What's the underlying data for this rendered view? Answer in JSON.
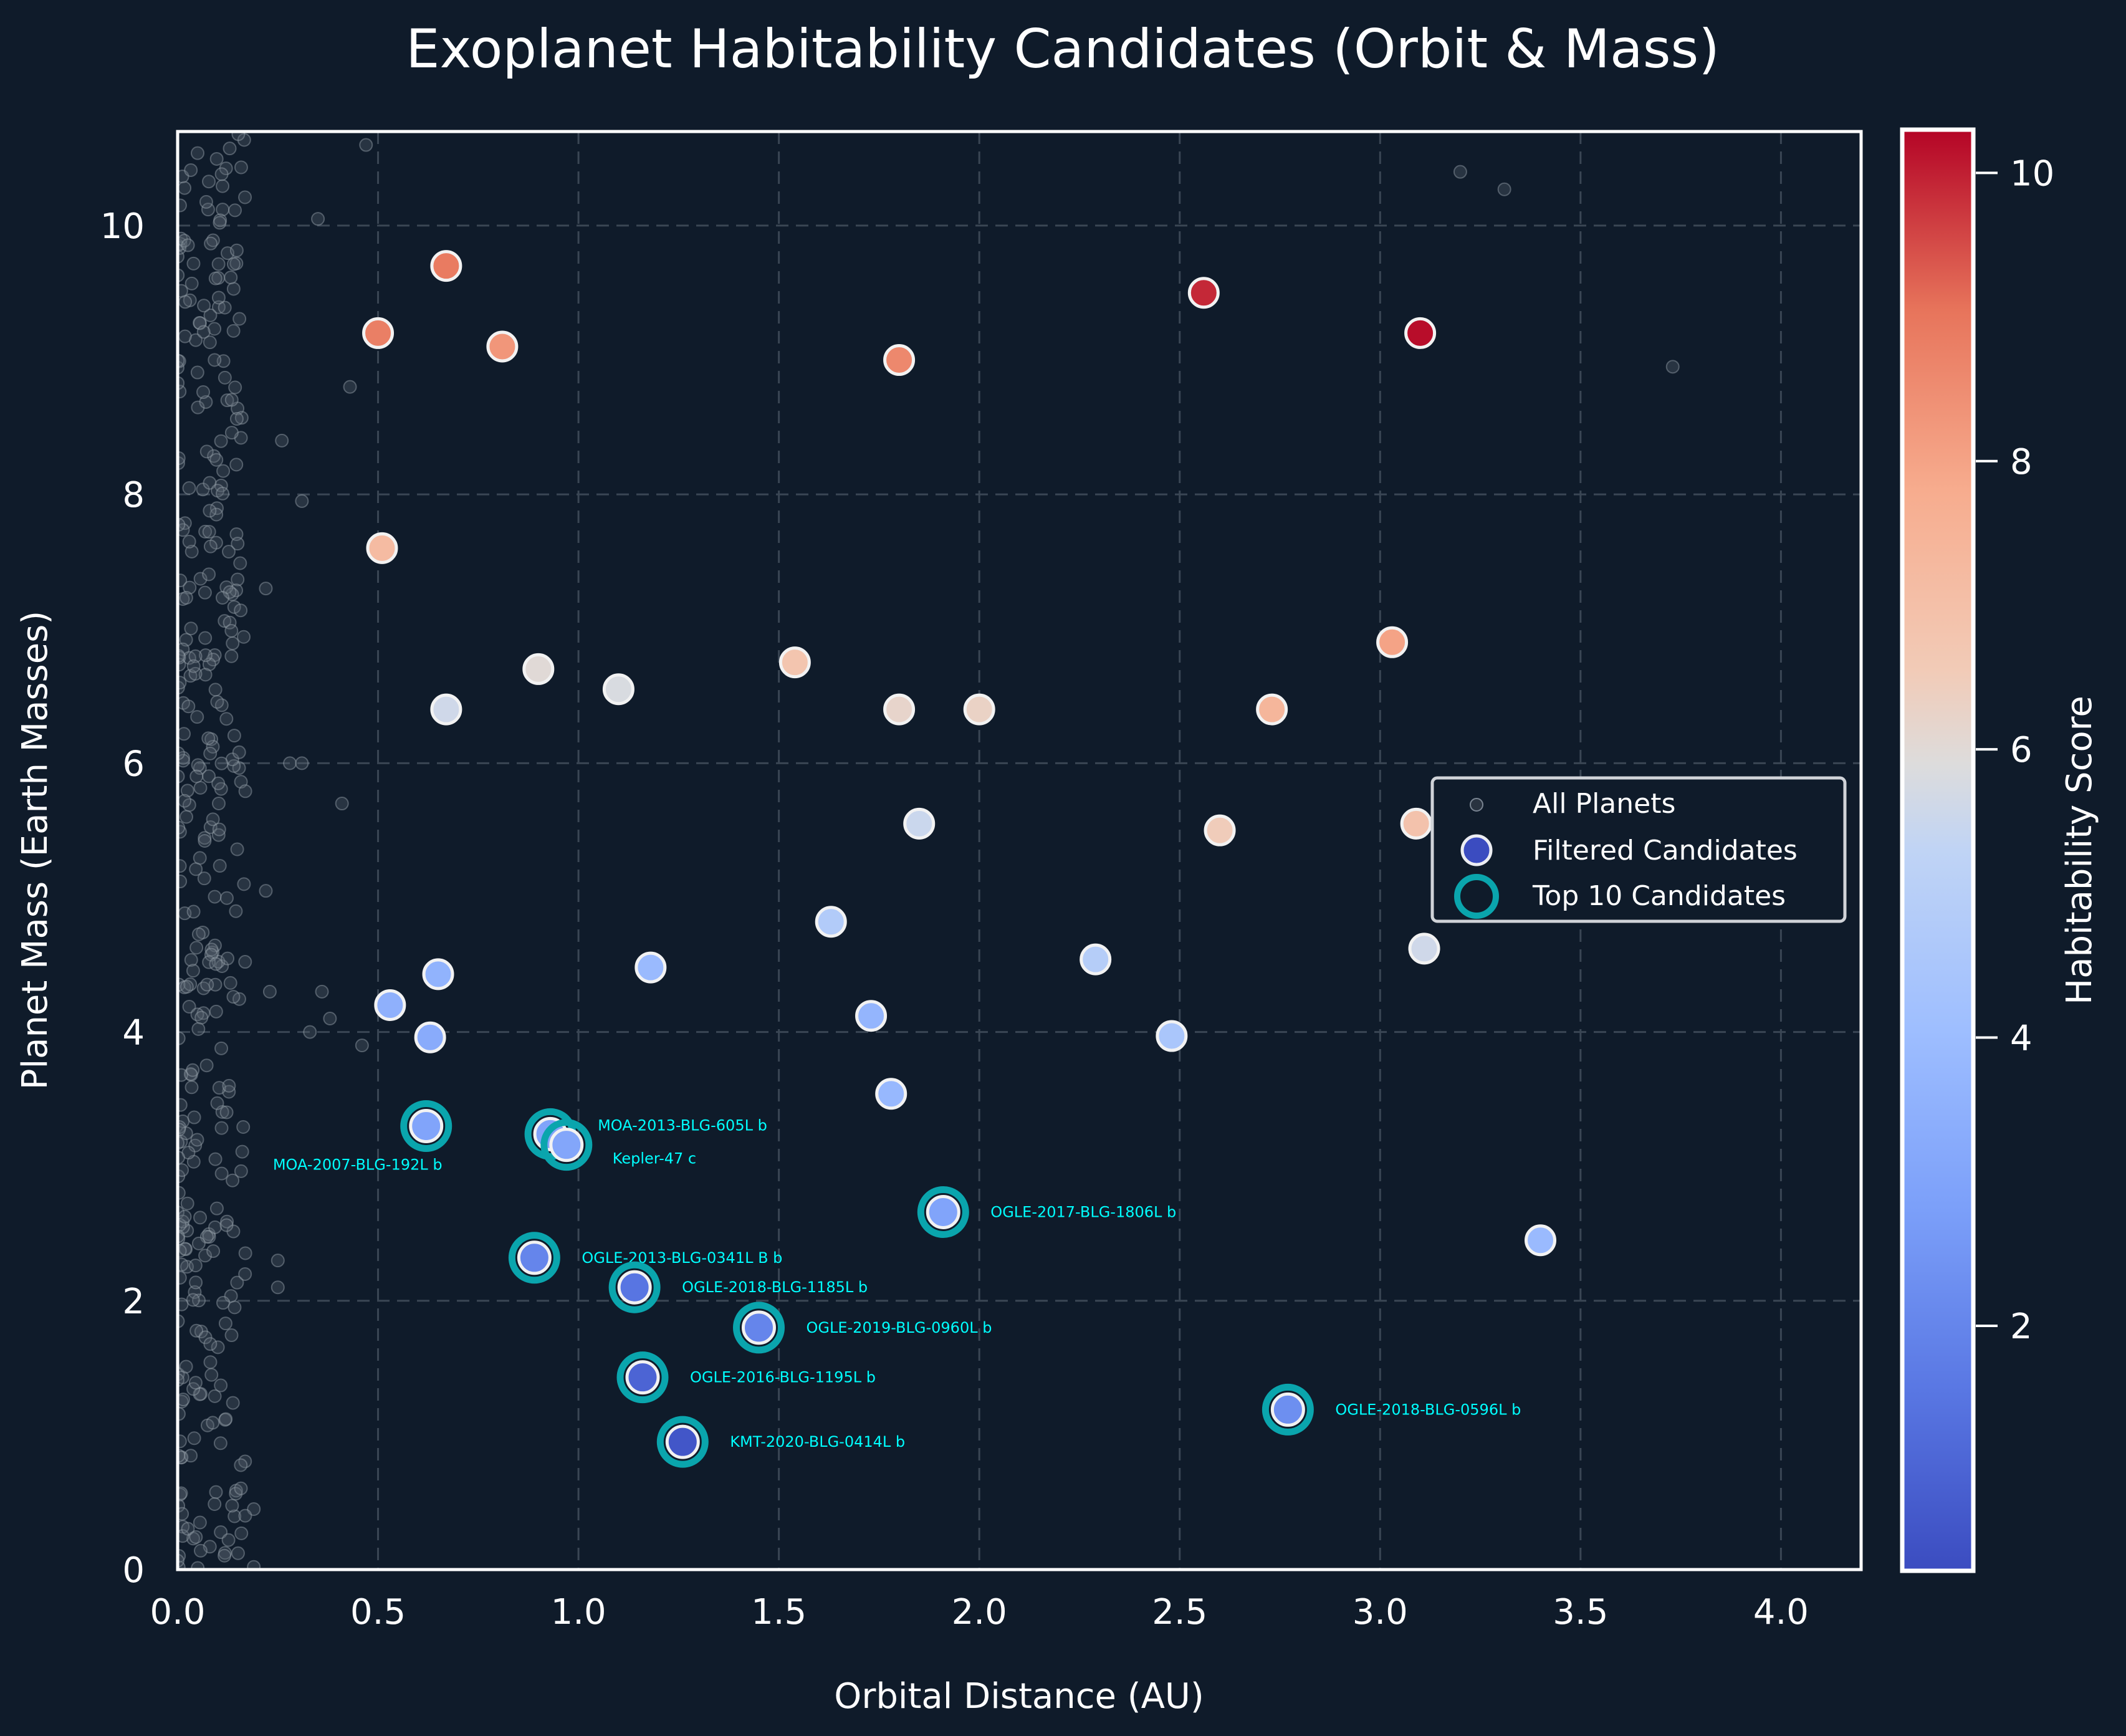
{
  "chart_data": {
    "type": "scatter",
    "title": "Exoplanet Habitability Candidates (Orbit & Mass)",
    "xlabel": "Orbital Distance (AU)",
    "ylabel": "Planet Mass (Earth Masses)",
    "xlim": [
      0.0,
      4.2
    ],
    "ylim": [
      0,
      10.7
    ],
    "xticks": [
      "0.0",
      "0.5",
      "1.0",
      "1.5",
      "2.0",
      "2.5",
      "3.0",
      "3.5",
      "4.0"
    ],
    "xtick_values": [
      0.0,
      0.5,
      1.0,
      1.5,
      2.0,
      2.5,
      3.0,
      3.5,
      4.0
    ],
    "yticks": [
      "0",
      "2",
      "4",
      "6",
      "8",
      "10"
    ],
    "ytick_values": [
      0,
      2,
      4,
      6,
      8,
      10
    ],
    "grid": true,
    "colorbar": {
      "label": "Habitability Score",
      "range": [
        0.3,
        10.3
      ],
      "ticks": [
        "2",
        "4",
        "6",
        "8",
        "10"
      ],
      "tick_values": [
        2,
        4,
        6,
        8,
        10
      ],
      "colormap": "coolwarm"
    },
    "legend": {
      "position": "center-right",
      "entries": [
        "All Planets",
        "Filtered Candidates",
        "Top 10 Candidates"
      ]
    },
    "series": [
      {
        "name": "Filtered Candidates",
        "points": [
          {
            "x": 0.5,
            "y": 9.2,
            "score": 8.8
          },
          {
            "x": 0.67,
            "y": 9.7,
            "score": 8.9
          },
          {
            "x": 0.81,
            "y": 9.1,
            "score": 8.3
          },
          {
            "x": 1.8,
            "y": 9.0,
            "score": 8.6
          },
          {
            "x": 2.56,
            "y": 9.5,
            "score": 9.9
          },
          {
            "x": 3.1,
            "y": 9.2,
            "score": 10.2
          },
          {
            "x": 0.51,
            "y": 7.6,
            "score": 7.2
          },
          {
            "x": 0.9,
            "y": 6.7,
            "score": 6.0
          },
          {
            "x": 1.1,
            "y": 6.55,
            "score": 5.8
          },
          {
            "x": 0.67,
            "y": 6.4,
            "score": 5.6
          },
          {
            "x": 1.54,
            "y": 6.75,
            "score": 6.8
          },
          {
            "x": 1.8,
            "y": 6.4,
            "score": 6.2
          },
          {
            "x": 2.0,
            "y": 6.4,
            "score": 6.3
          },
          {
            "x": 2.73,
            "y": 6.4,
            "score": 7.4
          },
          {
            "x": 3.03,
            "y": 6.9,
            "score": 8.0
          },
          {
            "x": 1.85,
            "y": 5.55,
            "score": 5.5
          },
          {
            "x": 2.6,
            "y": 5.5,
            "score": 6.5
          },
          {
            "x": 3.09,
            "y": 5.55,
            "score": 6.9
          },
          {
            "x": 3.11,
            "y": 4.62,
            "score": 5.6
          },
          {
            "x": 1.63,
            "y": 4.82,
            "score": 4.8
          },
          {
            "x": 1.18,
            "y": 4.48,
            "score": 3.9
          },
          {
            "x": 2.29,
            "y": 4.54,
            "score": 4.9
          },
          {
            "x": 0.65,
            "y": 4.43,
            "score": 3.6
          },
          {
            "x": 0.53,
            "y": 4.2,
            "score": 3.5
          },
          {
            "x": 1.73,
            "y": 4.12,
            "score": 3.7
          },
          {
            "x": 0.63,
            "y": 3.96,
            "score": 3.3
          },
          {
            "x": 2.48,
            "y": 3.97,
            "score": 4.5
          },
          {
            "x": 1.78,
            "y": 3.54,
            "score": 3.8
          },
          {
            "x": 3.4,
            "y": 2.45,
            "score": 3.9
          }
        ]
      },
      {
        "name": "Top 10 Candidates",
        "points": [
          {
            "name": "MOA-2007-BLG-192L b",
            "x": 0.62,
            "y": 3.3,
            "score": 3.0,
            "label_side": "below-left"
          },
          {
            "name": "MOA-2013-BLG-605L b",
            "x": 0.93,
            "y": 3.24,
            "score": 3.0,
            "label_side": "right-up"
          },
          {
            "name": "Kepler-47 c",
            "x": 0.97,
            "y": 3.16,
            "score": 3.1,
            "label_side": "right-down"
          },
          {
            "name": "OGLE-2017-BLG-1806L b",
            "x": 1.91,
            "y": 2.66,
            "score": 3.0,
            "label_side": "right"
          },
          {
            "name": "OGLE-2013-BLG-0341L B b",
            "x": 0.89,
            "y": 2.32,
            "score": 2.0,
            "label_side": "right"
          },
          {
            "name": "OGLE-2018-BLG-1185L b",
            "x": 1.14,
            "y": 2.1,
            "score": 1.5,
            "label_side": "right"
          },
          {
            "name": "OGLE-2019-BLG-0960L b",
            "x": 1.45,
            "y": 1.8,
            "score": 2.0,
            "label_side": "right"
          },
          {
            "name": "OGLE-2016-BLG-1195L b",
            "x": 1.16,
            "y": 1.43,
            "score": 1.0,
            "label_side": "right"
          },
          {
            "name": "KMT-2020-BLG-0414L b",
            "x": 1.26,
            "y": 0.95,
            "score": 0.6,
            "label_side": "right"
          },
          {
            "name": "OGLE-2018-BLG-0596L b",
            "x": 2.77,
            "y": 1.19,
            "score": 2.3,
            "label_side": "right"
          }
        ]
      },
      {
        "name": "All Planets",
        "note": "dense background cluster, mostly x < 0.25 AU spanning mass 0–10.7; sparse outliers listed",
        "points": [
          {
            "x": 0.47,
            "y": 10.6
          },
          {
            "x": 0.35,
            "y": 10.05
          },
          {
            "x": 0.43,
            "y": 8.8
          },
          {
            "x": 0.26,
            "y": 8.4
          },
          {
            "x": 0.31,
            "y": 7.95
          },
          {
            "x": 0.22,
            "y": 7.3
          },
          {
            "x": 0.28,
            "y": 6.0
          },
          {
            "x": 0.31,
            "y": 6.0
          },
          {
            "x": 0.41,
            "y": 5.7
          },
          {
            "x": 0.22,
            "y": 5.05
          },
          {
            "x": 0.23,
            "y": 4.3
          },
          {
            "x": 0.36,
            "y": 4.3
          },
          {
            "x": 0.38,
            "y": 4.1
          },
          {
            "x": 0.33,
            "y": 4.0
          },
          {
            "x": 0.46,
            "y": 3.9
          },
          {
            "x": 0.25,
            "y": 2.3
          },
          {
            "x": 0.25,
            "y": 2.1
          },
          {
            "x": 0.19,
            "y": 0.45
          },
          {
            "x": 0.19,
            "y": 0.02
          },
          {
            "x": 3.2,
            "y": 10.4
          },
          {
            "x": 3.31,
            "y": 10.27
          },
          {
            "x": 3.73,
            "y": 8.95
          }
        ]
      }
    ]
  }
}
